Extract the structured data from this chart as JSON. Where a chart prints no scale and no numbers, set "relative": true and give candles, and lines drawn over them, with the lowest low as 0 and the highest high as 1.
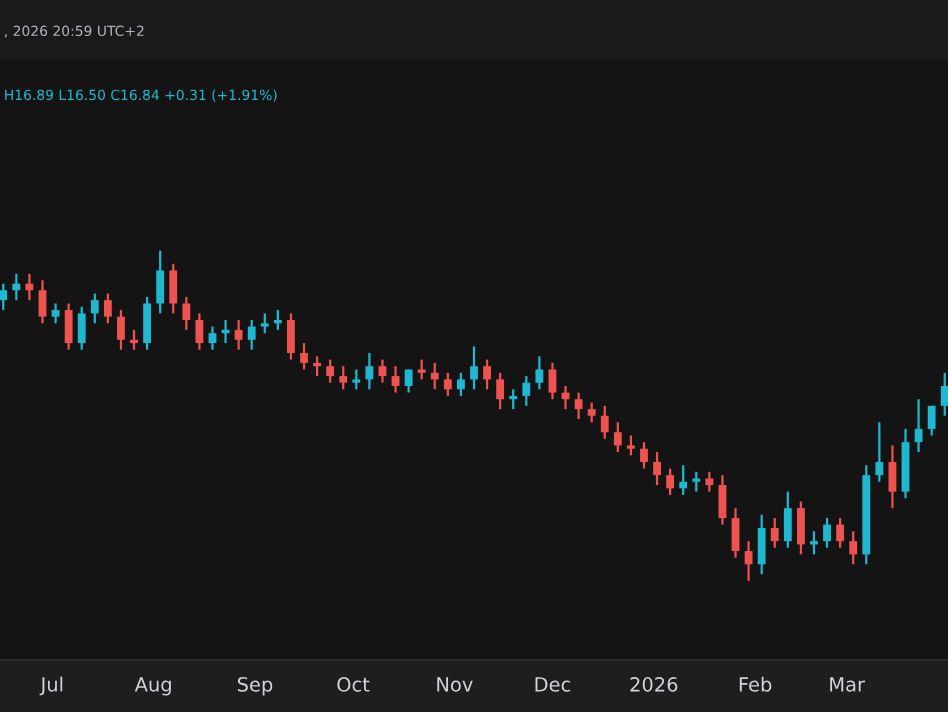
{
  "chart_data": {
    "type": "candlestick",
    "relative": true,
    "tick_labels": "x",
    "grid": false,
    "annotations": [
      ", 2026 20:59 UTC+2",
      "H16.89 L16.50 C16.84 +0.31 (+1.91%)"
    ],
    "xlim": [
      "2025-06-15",
      "2026-04-01"
    ],
    "xticks": [
      {
        "value": "2025-07-01",
        "label": "Jul"
      },
      {
        "value": "2025-08-01",
        "label": "Aug"
      },
      {
        "value": "2025-09-01",
        "label": "Sep"
      },
      {
        "value": "2025-10-01",
        "label": "Oct"
      },
      {
        "value": "2025-11-01",
        "label": "Nov"
      },
      {
        "value": "2025-12-01",
        "label": "Dec"
      },
      {
        "value": "2026-01-01",
        "label": "2026"
      },
      {
        "value": "2026-02-01",
        "label": "Feb"
      },
      {
        "value": "2026-03-01",
        "label": "Mar"
      }
    ],
    "x": [
      "2025-06-16",
      "2025-06-20",
      "2025-06-24",
      "2025-06-28",
      "2025-07-02",
      "2025-07-06",
      "2025-07-10",
      "2025-07-14",
      "2025-07-18",
      "2025-07-22",
      "2025-07-26",
      "2025-07-30",
      "2025-08-03",
      "2025-08-07",
      "2025-08-11",
      "2025-08-15",
      "2025-08-19",
      "2025-08-23",
      "2025-08-27",
      "2025-08-31",
      "2025-09-04",
      "2025-09-08",
      "2025-09-12",
      "2025-09-16",
      "2025-09-20",
      "2025-09-24",
      "2025-09-28",
      "2025-10-02",
      "2025-10-06",
      "2025-10-10",
      "2025-10-14",
      "2025-10-18",
      "2025-10-22",
      "2025-10-26",
      "2025-10-30",
      "2025-11-03",
      "2025-11-07",
      "2025-11-11",
      "2025-11-15",
      "2025-11-19",
      "2025-11-23",
      "2025-11-27",
      "2025-12-01",
      "2025-12-05",
      "2025-12-09",
      "2025-12-13",
      "2025-12-17",
      "2025-12-21",
      "2025-12-25",
      "2025-12-29",
      "2026-01-02",
      "2026-01-06",
      "2026-01-10",
      "2026-01-14",
      "2026-01-18",
      "2026-01-22",
      "2026-01-26",
      "2026-01-30",
      "2026-02-03",
      "2026-02-07",
      "2026-02-11",
      "2026-02-15",
      "2026-02-19",
      "2026-02-23",
      "2026-02-27",
      "2026-03-03",
      "2026-03-07",
      "2026-03-11",
      "2026-03-15",
      "2026-03-19",
      "2026-03-23",
      "2026-03-27",
      "2026-03-31"
    ],
    "ohlc": [
      [
        0.85,
        0.9,
        0.82,
        0.88
      ],
      [
        0.88,
        0.93,
        0.85,
        0.9
      ],
      [
        0.9,
        0.93,
        0.85,
        0.88
      ],
      [
        0.88,
        0.91,
        0.78,
        0.8
      ],
      [
        0.8,
        0.84,
        0.78,
        0.82
      ],
      [
        0.82,
        0.84,
        0.7,
        0.72
      ],
      [
        0.72,
        0.83,
        0.7,
        0.81
      ],
      [
        0.81,
        0.87,
        0.78,
        0.85
      ],
      [
        0.85,
        0.87,
        0.78,
        0.8
      ],
      [
        0.8,
        0.82,
        0.7,
        0.73
      ],
      [
        0.73,
        0.76,
        0.7,
        0.72
      ],
      [
        0.72,
        0.86,
        0.7,
        0.84
      ],
      [
        0.84,
        1.0,
        0.81,
        0.94
      ],
      [
        0.94,
        0.96,
        0.81,
        0.84
      ],
      [
        0.84,
        0.86,
        0.76,
        0.79
      ],
      [
        0.79,
        0.81,
        0.7,
        0.72
      ],
      [
        0.72,
        0.77,
        0.7,
        0.75
      ],
      [
        0.75,
        0.79,
        0.72,
        0.76
      ],
      [
        0.76,
        0.79,
        0.7,
        0.73
      ],
      [
        0.73,
        0.79,
        0.7,
        0.77
      ],
      [
        0.77,
        0.81,
        0.75,
        0.78
      ],
      [
        0.78,
        0.82,
        0.76,
        0.79
      ],
      [
        0.79,
        0.81,
        0.67,
        0.69
      ],
      [
        0.69,
        0.72,
        0.64,
        0.66
      ],
      [
        0.66,
        0.68,
        0.62,
        0.65
      ],
      [
        0.65,
        0.67,
        0.6,
        0.62
      ],
      [
        0.62,
        0.65,
        0.58,
        0.6
      ],
      [
        0.6,
        0.64,
        0.58,
        0.61
      ],
      [
        0.61,
        0.69,
        0.58,
        0.65
      ],
      [
        0.65,
        0.67,
        0.6,
        0.62
      ],
      [
        0.62,
        0.65,
        0.57,
        0.59
      ],
      [
        0.59,
        0.64,
        0.57,
        0.64
      ],
      [
        0.64,
        0.67,
        0.61,
        0.63
      ],
      [
        0.63,
        0.66,
        0.58,
        0.61
      ],
      [
        0.61,
        0.63,
        0.56,
        0.58
      ],
      [
        0.58,
        0.63,
        0.56,
        0.61
      ],
      [
        0.61,
        0.71,
        0.58,
        0.65
      ],
      [
        0.65,
        0.67,
        0.58,
        0.61
      ],
      [
        0.61,
        0.63,
        0.52,
        0.55
      ],
      [
        0.55,
        0.58,
        0.52,
        0.56
      ],
      [
        0.56,
        0.62,
        0.53,
        0.6
      ],
      [
        0.6,
        0.68,
        0.58,
        0.64
      ],
      [
        0.64,
        0.66,
        0.55,
        0.57
      ],
      [
        0.57,
        0.59,
        0.52,
        0.55
      ],
      [
        0.55,
        0.57,
        0.49,
        0.52
      ],
      [
        0.52,
        0.54,
        0.48,
        0.5
      ],
      [
        0.5,
        0.53,
        0.43,
        0.45
      ],
      [
        0.45,
        0.48,
        0.39,
        0.41
      ],
      [
        0.41,
        0.44,
        0.38,
        0.4
      ],
      [
        0.4,
        0.42,
        0.34,
        0.36
      ],
      [
        0.36,
        0.39,
        0.29,
        0.32
      ],
      [
        0.32,
        0.34,
        0.26,
        0.28
      ],
      [
        0.28,
        0.35,
        0.26,
        0.3
      ],
      [
        0.3,
        0.33,
        0.27,
        0.31
      ],
      [
        0.31,
        0.33,
        0.27,
        0.29
      ],
      [
        0.29,
        0.32,
        0.17,
        0.19
      ],
      [
        0.19,
        0.22,
        0.07,
        0.09
      ],
      [
        0.09,
        0.12,
        0.0,
        0.05
      ],
      [
        0.05,
        0.2,
        0.02,
        0.16
      ],
      [
        0.16,
        0.19,
        0.1,
        0.12
      ],
      [
        0.12,
        0.27,
        0.1,
        0.22
      ],
      [
        0.22,
        0.24,
        0.08,
        0.11
      ],
      [
        0.11,
        0.15,
        0.08,
        0.12
      ],
      [
        0.12,
        0.19,
        0.1,
        0.17
      ],
      [
        0.17,
        0.19,
        0.1,
        0.12
      ],
      [
        0.12,
        0.15,
        0.05,
        0.08
      ],
      [
        0.08,
        0.35,
        0.05,
        0.32
      ],
      [
        0.32,
        0.48,
        0.3,
        0.36
      ],
      [
        0.36,
        0.41,
        0.22,
        0.27
      ],
      [
        0.27,
        0.46,
        0.25,
        0.42
      ],
      [
        0.42,
        0.55,
        0.39,
        0.46
      ],
      [
        0.46,
        0.53,
        0.44,
        0.53
      ],
      [
        0.53,
        0.63,
        0.5,
        0.59
      ]
    ],
    "colors": [
      "#1fb8d0",
      "#1fb8d0",
      "#ef5350",
      "#ef5350",
      "#1fb8d0",
      "#ef5350",
      "#1fb8d0",
      "#1fb8d0",
      "#ef5350",
      "#ef5350",
      "#ef5350",
      "#1fb8d0",
      "#1fb8d0",
      "#ef5350",
      "#ef5350",
      "#ef5350",
      "#1fb8d0",
      "#1fb8d0",
      "#ef5350",
      "#1fb8d0",
      "#1fb8d0",
      "#1fb8d0",
      "#ef5350",
      "#ef5350",
      "#ef5350",
      "#ef5350",
      "#ef5350",
      "#1fb8d0",
      "#1fb8d0",
      "#ef5350",
      "#ef5350",
      "#1fb8d0",
      "#ef5350",
      "#ef5350",
      "#ef5350",
      "#1fb8d0",
      "#1fb8d0",
      "#ef5350",
      "#ef5350",
      "#1fb8d0",
      "#1fb8d0",
      "#1fb8d0",
      "#ef5350",
      "#ef5350",
      "#ef5350",
      "#ef5350",
      "#ef5350",
      "#ef5350",
      "#ef5350",
      "#ef5350",
      "#ef5350",
      "#ef5350",
      "#1fb8d0",
      "#1fb8d0",
      "#ef5350",
      "#ef5350",
      "#ef5350",
      "#ef5350",
      "#1fb8d0",
      "#ef5350",
      "#1fb8d0",
      "#ef5350",
      "#1fb8d0",
      "#1fb8d0",
      "#ef5350",
      "#ef5350",
      "#1fb8d0",
      "#1fb8d0",
      "#ef5350",
      "#1fb8d0",
      "#1fb8d0",
      "#1fb8d0",
      "#1fb8d0"
    ]
  }
}
